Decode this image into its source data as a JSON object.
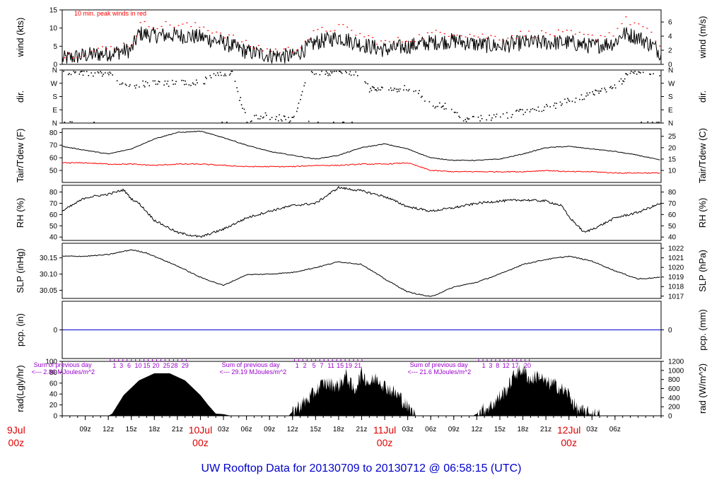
{
  "title": "UW Rooftop Data for 20130709  to  20130712 @ 06:58:15  (UTC)",
  "colors": {
    "frame": "#000000",
    "red": "#ff0000",
    "blue": "#0000cc",
    "purple": "#9900cc",
    "date_red": "#dd0000",
    "fill": "#000000"
  },
  "time_axis": {
    "start": "2013-07-09 06:00",
    "end": "2013-07-12 07:00",
    "hour_ticks": [
      "09z",
      "12z",
      "15z",
      "18z",
      "21z",
      "00z",
      "03z",
      "06z",
      "09z",
      "12z",
      "15z",
      "18z",
      "21z",
      "00z",
      "03z",
      "06z",
      "09z",
      "12z",
      "15z",
      "18z",
      "21z",
      "00z",
      "03z",
      "06z"
    ],
    "day_labels": [
      {
        "t": "2013-07-09 00:00",
        "date": "9Jul",
        "hour": "00z"
      },
      {
        "t": "2013-07-10 00:00",
        "date": "10Jul",
        "hour": "00z"
      },
      {
        "t": "2013-07-11 00:00",
        "date": "11Jul",
        "hour": "00z"
      },
      {
        "t": "2013-07-12 00:00",
        "date": "12Jul",
        "hour": "00z"
      }
    ]
  },
  "chart_data": [
    {
      "id": "wind",
      "type": "line",
      "left_label": "wind (kts)",
      "right_label": "wind (m/s)",
      "ylim": [
        0,
        15
      ],
      "left_ticks": [
        0,
        5,
        10,
        15
      ],
      "right_ticks": [
        0,
        2,
        4,
        6
      ],
      "right_scale_factor": 1.944,
      "annotation": "10 min. peak winds in red",
      "series": [
        {
          "color": "black",
          "x_hours": [
            0,
            3,
            6,
            9,
            10,
            12,
            15,
            18,
            21,
            24,
            27,
            30,
            33,
            36,
            39,
            42,
            45,
            48,
            51,
            54,
            57,
            60,
            63,
            66,
            69,
            72,
            73,
            75,
            77,
            78
          ],
          "values": [
            1.5,
            2.5,
            3,
            4,
            8.5,
            8,
            8,
            7.5,
            6,
            3.5,
            2.5,
            2.2,
            6,
            7.5,
            5.5,
            4,
            5,
            6,
            6.5,
            5.5,
            5,
            6,
            6,
            6,
            5,
            6,
            8.5,
            7.5,
            5,
            3
          ]
        },
        {
          "color": "red",
          "x_hours": [
            0,
            3,
            6,
            9,
            10,
            12,
            15,
            18,
            21,
            24,
            27,
            30,
            33,
            36,
            39,
            42,
            45,
            48,
            51,
            54,
            57,
            60,
            63,
            66,
            69,
            72,
            73,
            75,
            77,
            78
          ],
          "values": [
            2.5,
            3.5,
            4.5,
            6,
            11,
            11,
            11,
            10.5,
            8.5,
            5.5,
            4,
            4,
            9,
            10.5,
            8,
            6,
            7,
            8.5,
            9,
            8,
            7.5,
            8.5,
            8.5,
            8.5,
            7.5,
            9,
            12.5,
            11,
            7.5,
            4.5
          ]
        }
      ]
    },
    {
      "id": "dir",
      "type": "scatter",
      "left_label": "dir.",
      "right_label": "dir.",
      "ylim": [
        0,
        360
      ],
      "tick_labels": [
        "N",
        "E",
        "S",
        "W",
        "N"
      ],
      "tick_values": [
        0,
        90,
        180,
        270,
        360
      ],
      "series": [
        {
          "color": "black",
          "x_hours": [
            0,
            2,
            4,
            6,
            8,
            10,
            12,
            14,
            16,
            18,
            20,
            22,
            24,
            26,
            28,
            30,
            32,
            34,
            36,
            38,
            40,
            42,
            44,
            46,
            48,
            50,
            52,
            54,
            56,
            58,
            60,
            62,
            64,
            66,
            68,
            70,
            72,
            74,
            76,
            78
          ],
          "values": [
            355,
            350,
            345,
            340,
            248,
            268,
            270,
            272,
            275,
            275,
            345,
            350,
            20,
            60,
            40,
            20,
            355,
            350,
            348,
            350,
            232,
            235,
            240,
            230,
            125,
            120,
            20,
            30,
            45,
            60,
            80,
            100,
            120,
            160,
            180,
            220,
            245,
            355,
            350,
            345
          ]
        }
      ]
    },
    {
      "id": "temp",
      "type": "line",
      "left_label": "Tair/Tdew (F)",
      "right_label": "Tair/Tdew (C)",
      "ylim": [
        40.5,
        83
      ],
      "left_ticks": [
        50,
        60,
        70,
        80
      ],
      "right_ticks": [
        10,
        15,
        20,
        25
      ],
      "series": [
        {
          "color": "black",
          "name_hint": "Tair",
          "x_hours": [
            0,
            3,
            6,
            9,
            12,
            15,
            18,
            21,
            24,
            27,
            30,
            33,
            36,
            39,
            42,
            45,
            48,
            51,
            54,
            57,
            60,
            63,
            66,
            69,
            72,
            75,
            78
          ],
          "values": [
            69,
            66,
            63,
            67,
            75,
            80,
            81,
            76,
            70,
            65,
            62,
            59,
            62,
            68,
            71,
            67,
            60,
            58,
            58,
            59,
            63,
            68,
            69,
            67,
            65,
            62,
            58
          ]
        },
        {
          "color": "red",
          "name_hint": "Tdew",
          "x_hours": [
            0,
            3,
            6,
            9,
            12,
            15,
            18,
            21,
            24,
            27,
            30,
            33,
            36,
            39,
            42,
            45,
            48,
            51,
            54,
            57,
            60,
            63,
            66,
            69,
            72,
            75,
            78
          ],
          "values": [
            56,
            56,
            55,
            55,
            54,
            55,
            55,
            54,
            53,
            53,
            53,
            54,
            54,
            55,
            55,
            56,
            50,
            49,
            49,
            49,
            49,
            50,
            49,
            49,
            48,
            48,
            48
          ]
        }
      ]
    },
    {
      "id": "rh",
      "type": "line",
      "left_label": "RH (%)",
      "right_label": "RH (%)",
      "ylim": [
        37,
        86
      ],
      "ticks": [
        40,
        50,
        60,
        70,
        80
      ],
      "series": [
        {
          "color": "black",
          "x_hours": [
            0,
            3,
            6,
            8,
            9,
            10,
            12,
            15,
            18,
            21,
            24,
            27,
            30,
            33,
            36,
            37,
            39,
            42,
            45,
            48,
            51,
            54,
            57,
            60,
            63,
            65,
            66,
            68,
            70,
            72,
            75,
            78
          ],
          "values": [
            63,
            75,
            78,
            82,
            74,
            70,
            55,
            44,
            40,
            47,
            57,
            63,
            68,
            70,
            84,
            83,
            81,
            76,
            67,
            63,
            66,
            70,
            72,
            73,
            72,
            68,
            58,
            44,
            50,
            57,
            62,
            70
          ]
        }
      ]
    },
    {
      "id": "slp",
      "type": "line",
      "left_label": "SLP (inHg)",
      "right_label": "SLP (hPa)",
      "ylim": [
        30.025,
        30.195
      ],
      "left_ticks": [
        30.05,
        30.1,
        30.15
      ],
      "right_ticks": [
        1017,
        1018,
        1019,
        1020,
        1021,
        1022
      ],
      "series": [
        {
          "color": "black",
          "x_hours": [
            0,
            3,
            6,
            9,
            11,
            15,
            18,
            21,
            24,
            27,
            30,
            33,
            36,
            39,
            42,
            45,
            48,
            51,
            54,
            57,
            60,
            63,
            66,
            69,
            72,
            75,
            78
          ],
          "values": [
            30.155,
            30.155,
            30.16,
            30.175,
            30.165,
            30.125,
            30.09,
            30.065,
            30.098,
            30.1,
            30.105,
            30.12,
            30.138,
            30.13,
            30.085,
            30.045,
            30.03,
            30.06,
            30.075,
            30.1,
            30.13,
            30.145,
            30.155,
            30.14,
            30.11,
            30.085,
            30.09
          ]
        }
      ]
    },
    {
      "id": "pcp",
      "type": "line",
      "left_label": "pcp. (in)",
      "right_label": "pcp. (mm)",
      "ylim": [
        -0.5,
        0.5
      ],
      "ticks": [
        0
      ],
      "series": [
        {
          "color": "blue",
          "x_hours": [
            0,
            78
          ],
          "values": [
            0,
            0
          ]
        }
      ]
    },
    {
      "id": "rad",
      "type": "area",
      "left_label": "rad(Lgly/hr)",
      "right_label": "rad (W/m^2)",
      "ylim": [
        0,
        100
      ],
      "left_ticks": [
        0,
        20,
        40,
        60,
        80,
        100
      ],
      "right_ticks": [
        0,
        200,
        400,
        600,
        800,
        1000,
        1200
      ],
      "series": [
        {
          "color": "black",
          "x_hours": [
            0,
            5,
            6,
            6.5,
            8,
            10,
            12,
            14,
            16,
            18,
            19,
            20,
            21,
            22,
            29,
            29.5,
            30,
            32,
            34,
            36,
            37,
            38,
            39,
            40,
            41,
            42,
            43,
            44,
            45,
            46,
            53,
            53.5,
            54,
            56,
            58,
            59,
            60,
            61,
            62,
            63,
            64,
            66,
            67,
            68,
            69,
            70
          ],
          "values": [
            0,
            0,
            0,
            4,
            38,
            65,
            78,
            78,
            65,
            38,
            20,
            4,
            3,
            0,
            0,
            0,
            8,
            30,
            60,
            55,
            75,
            45,
            78,
            60,
            70,
            55,
            45,
            35,
            15,
            0,
            0,
            0,
            4,
            20,
            50,
            78,
            85,
            65,
            75,
            60,
            58,
            40,
            12,
            6,
            3,
            0
          ]
        }
      ],
      "annotations": [
        {
          "label": "Sum of previous day",
          "value": "<--- 2.86 MJoules/m^2",
          "t_hours": -4
        },
        {
          "label": "Sum of previous day",
          "value": "<--- 29.19 MJoules/m^2",
          "t_hours": 20.5
        },
        {
          "label": "Sum of previous day",
          "value": "<--- 21.6 MJoules/m^2",
          "t_hours": 45
        }
      ],
      "hour_labels": [
        {
          "t_hours": 6.8,
          "text": "1"
        },
        {
          "t_hours": 7.7,
          "text": "3"
        },
        {
          "t_hours": 8.7,
          "text": "6"
        },
        {
          "t_hours": 9.9,
          "text": "10"
        },
        {
          "t_hours": 11.0,
          "text": "15"
        },
        {
          "t_hours": 12.2,
          "text": "20"
        },
        {
          "t_hours": 13.6,
          "text": "25"
        },
        {
          "t_hours": 14.6,
          "text": "28"
        },
        {
          "t_hours": 16.0,
          "text": "29"
        },
        {
          "t_hours": 30.6,
          "text": "1"
        },
        {
          "t_hours": 31.6,
          "text": "2"
        },
        {
          "t_hours": 32.8,
          "text": "5"
        },
        {
          "t_hours": 33.8,
          "text": "7"
        },
        {
          "t_hours": 35.0,
          "text": "11"
        },
        {
          "t_hours": 36.2,
          "text": "15"
        },
        {
          "t_hours": 37.3,
          "text": "19"
        },
        {
          "t_hours": 38.5,
          "text": "21"
        },
        {
          "t_hours": 54.9,
          "text": "1"
        },
        {
          "t_hours": 55.8,
          "text": "3"
        },
        {
          "t_hours": 56.7,
          "text": "8"
        },
        {
          "t_hours": 57.8,
          "text": "12"
        },
        {
          "t_hours": 59.0,
          "text": "17"
        },
        {
          "t_hours": 60.6,
          "text": "20"
        }
      ]
    }
  ]
}
